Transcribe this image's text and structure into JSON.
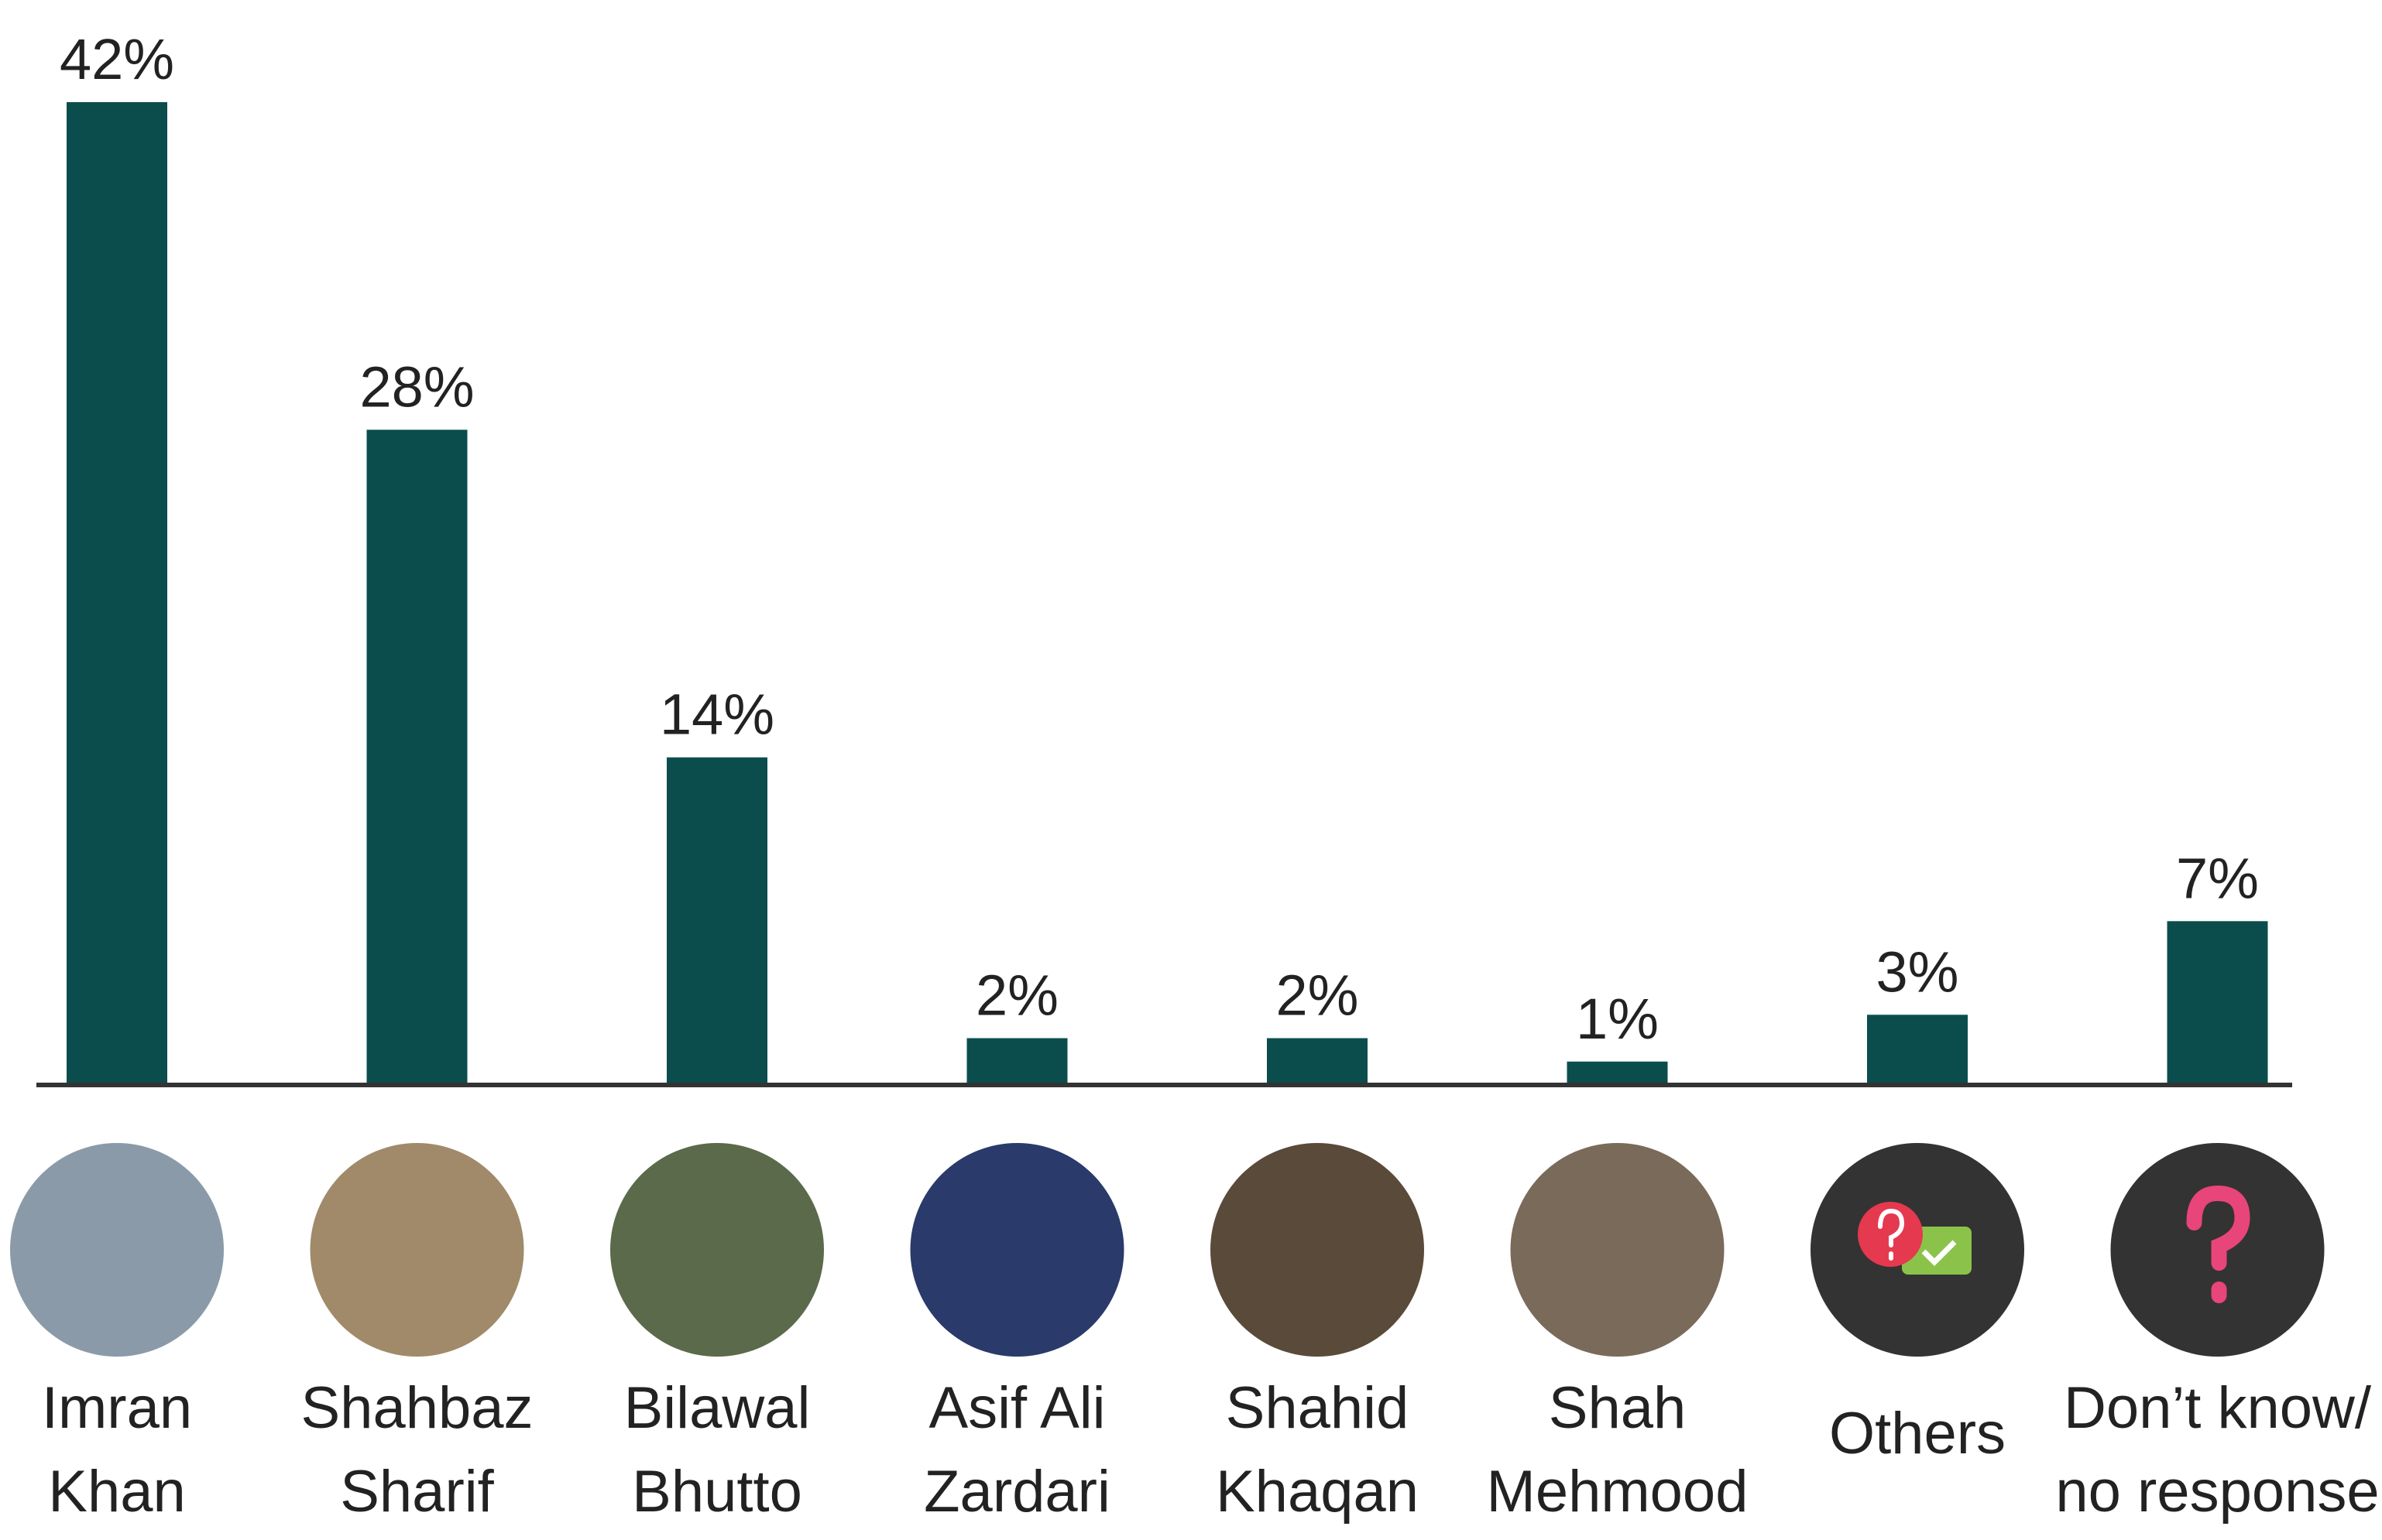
{
  "chart_data": {
    "type": "bar",
    "categories": [
      [
        "Imran",
        "Khan"
      ],
      [
        "Shahbaz",
        "Sharif"
      ],
      [
        "Bilawal",
        "Bhutto"
      ],
      [
        "Asif Ali",
        "Zardari"
      ],
      [
        "Shahid",
        "Khaqan"
      ],
      [
        "Shah",
        "Mehmood"
      ],
      [
        "Others"
      ],
      [
        "Don’t know/",
        "no response"
      ]
    ],
    "values": [
      42,
      28,
      14,
      2,
      2,
      1,
      3,
      7
    ],
    "value_labels": [
      "42%",
      "28%",
      "14%",
      "2%",
      "2%",
      "1%",
      "3%",
      "7%"
    ],
    "color": "#0b4d4d",
    "ylim": [
      0,
      42
    ]
  }
}
